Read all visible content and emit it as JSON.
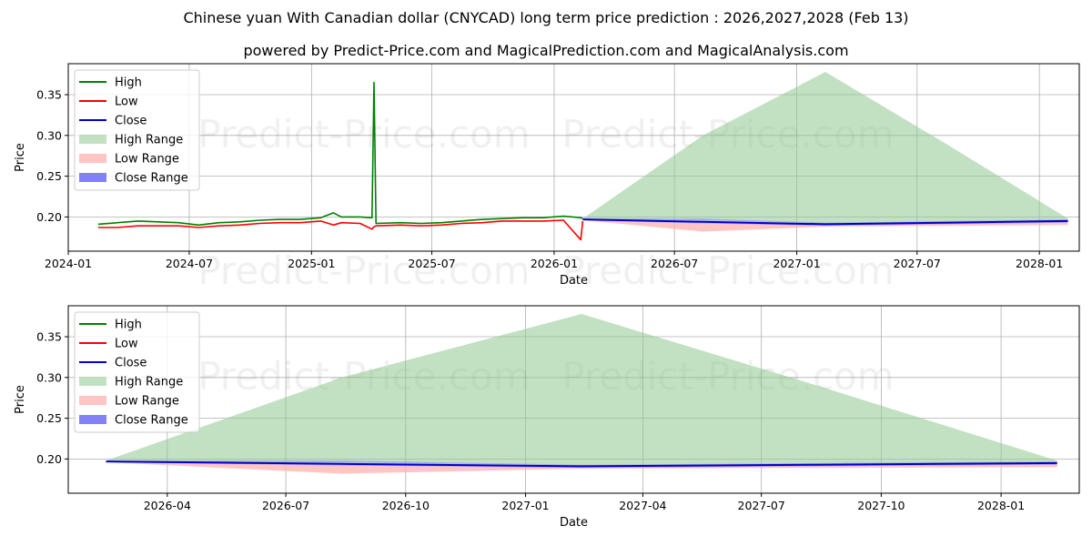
{
  "title": "Chinese yuan With Canadian dollar (CNYCAD) long term price prediction : 2026,2027,2028 (Feb 13)",
  "subtitle": "powered by Predict-Price.com and MagicalPrediction.com and MagicalAnalysis.com",
  "watermark": "Predict-Price.com",
  "colors": {
    "high": "#008000",
    "low": "#ff0000",
    "close": "#0000cd",
    "high_range": "#8fc98f",
    "low_range": "#ffb0b0",
    "close_range": "#7b7bf5",
    "grid": "#b0b0b0"
  },
  "legend": {
    "top": [
      "High",
      "Low",
      "Close",
      "High Range",
      "Low Range",
      "Close Range"
    ],
    "bottom": [
      "High",
      "Low",
      "Close",
      "High Range",
      "Low Range",
      "Close Range"
    ]
  },
  "chart_data": [
    {
      "type": "line",
      "panel": "top",
      "xlabel": "Date",
      "ylabel": "Price",
      "x_range": [
        "2024-01-01",
        "2028-03-01"
      ],
      "ylim": [
        0.158,
        0.388
      ],
      "x_ticks": [
        {
          "date": "2024-01-01",
          "label": "2024-01"
        },
        {
          "date": "2024-07-01",
          "label": "2024-07"
        },
        {
          "date": "2025-01-01",
          "label": "2025-01"
        },
        {
          "date": "2025-07-01",
          "label": "2025-07"
        },
        {
          "date": "2026-01-01",
          "label": "2026-01"
        },
        {
          "date": "2026-07-01",
          "label": "2026-07"
        },
        {
          "date": "2027-01-01",
          "label": "2027-01"
        },
        {
          "date": "2027-07-01",
          "label": "2027-07"
        },
        {
          "date": "2028-01-01",
          "label": "2028-01"
        }
      ],
      "y_ticks": [
        0.2,
        0.25,
        0.3,
        0.35
      ],
      "history": {
        "dates": [
          "2024-02-15",
          "2024-03-15",
          "2024-04-15",
          "2024-05-15",
          "2024-06-15",
          "2024-07-15",
          "2024-08-15",
          "2024-09-15",
          "2024-10-15",
          "2024-11-15",
          "2024-12-15",
          "2025-01-15",
          "2025-02-03",
          "2025-02-15",
          "2025-03-15",
          "2025-04-02",
          "2025-04-05",
          "2025-04-08",
          "2025-05-15",
          "2025-06-15",
          "2025-07-15",
          "2025-08-15",
          "2025-09-15",
          "2025-10-15",
          "2025-11-15",
          "2025-12-15",
          "2026-01-15",
          "2026-02-10",
          "2026-02-13"
        ],
        "high": [
          0.191,
          0.193,
          0.195,
          0.194,
          0.193,
          0.19,
          0.193,
          0.194,
          0.196,
          0.197,
          0.197,
          0.199,
          0.205,
          0.2,
          0.2,
          0.199,
          0.365,
          0.192,
          0.193,
          0.192,
          0.193,
          0.195,
          0.197,
          0.198,
          0.199,
          0.199,
          0.201,
          0.199,
          0.198
        ],
        "low": [
          0.187,
          0.187,
          0.189,
          0.189,
          0.189,
          0.187,
          0.189,
          0.19,
          0.192,
          0.193,
          0.193,
          0.195,
          0.19,
          0.193,
          0.192,
          0.185,
          0.188,
          0.189,
          0.19,
          0.189,
          0.19,
          0.192,
          0.193,
          0.195,
          0.195,
          0.195,
          0.196,
          0.172,
          0.195
        ],
        "close": [
          0.189,
          0.19,
          0.192,
          0.191,
          0.191,
          0.188,
          0.191,
          0.192,
          0.194,
          0.195,
          0.195,
          0.197,
          0.198,
          0.196,
          0.196,
          0.194,
          0.19,
          0.19,
          0.191,
          0.19,
          0.191,
          0.193,
          0.195,
          0.196,
          0.197,
          0.197,
          0.199,
          0.197,
          0.197
        ]
      },
      "forecast": {
        "dates": [
          "2026-02-13",
          "2026-08-13",
          "2027-02-13",
          "2027-08-13",
          "2028-02-13"
        ],
        "high_range_upper": [
          0.198,
          0.3,
          0.378,
          0.29,
          0.198
        ],
        "high_range_lower": [
          0.197,
          0.196,
          0.192,
          0.193,
          0.196
        ],
        "low_range_upper": [
          0.197,
          0.193,
          0.191,
          0.193,
          0.194
        ],
        "low_range_lower": [
          0.196,
          0.182,
          0.188,
          0.189,
          0.19
        ],
        "close_range_upper": [
          0.198,
          0.198,
          0.193,
          0.195,
          0.197
        ],
        "close_range_lower": [
          0.196,
          0.192,
          0.189,
          0.191,
          0.193
        ],
        "close": [
          0.197,
          0.194,
          0.191,
          0.193,
          0.195
        ]
      }
    },
    {
      "type": "line",
      "panel": "bottom",
      "xlabel": "Date",
      "ylabel": "Price",
      "x_range": [
        "2026-01-15",
        "2028-03-01"
      ],
      "ylim": [
        0.158,
        0.388
      ],
      "x_ticks": [
        {
          "date": "2026-04-01",
          "label": "2026-04"
        },
        {
          "date": "2026-07-01",
          "label": "2026-07"
        },
        {
          "date": "2026-10-01",
          "label": "2026-10"
        },
        {
          "date": "2027-01-01",
          "label": "2027-01"
        },
        {
          "date": "2027-04-01",
          "label": "2027-04"
        },
        {
          "date": "2027-07-01",
          "label": "2027-07"
        },
        {
          "date": "2027-10-01",
          "label": "2027-10"
        },
        {
          "date": "2028-01-01",
          "label": "2028-01"
        }
      ],
      "y_ticks": [
        0.2,
        0.25,
        0.3,
        0.35
      ],
      "forecast": {
        "dates": [
          "2026-02-13",
          "2026-08-13",
          "2027-02-13",
          "2027-08-13",
          "2028-02-13"
        ],
        "high_range_upper": [
          0.198,
          0.3,
          0.378,
          0.29,
          0.198
        ],
        "high_range_lower": [
          0.197,
          0.196,
          0.192,
          0.193,
          0.196
        ],
        "low_range_upper": [
          0.197,
          0.193,
          0.191,
          0.193,
          0.194
        ],
        "low_range_lower": [
          0.196,
          0.182,
          0.188,
          0.189,
          0.19
        ],
        "close_range_upper": [
          0.198,
          0.198,
          0.193,
          0.195,
          0.197
        ],
        "close_range_lower": [
          0.196,
          0.192,
          0.189,
          0.191,
          0.193
        ],
        "close": [
          0.197,
          0.194,
          0.191,
          0.193,
          0.195
        ]
      }
    }
  ]
}
